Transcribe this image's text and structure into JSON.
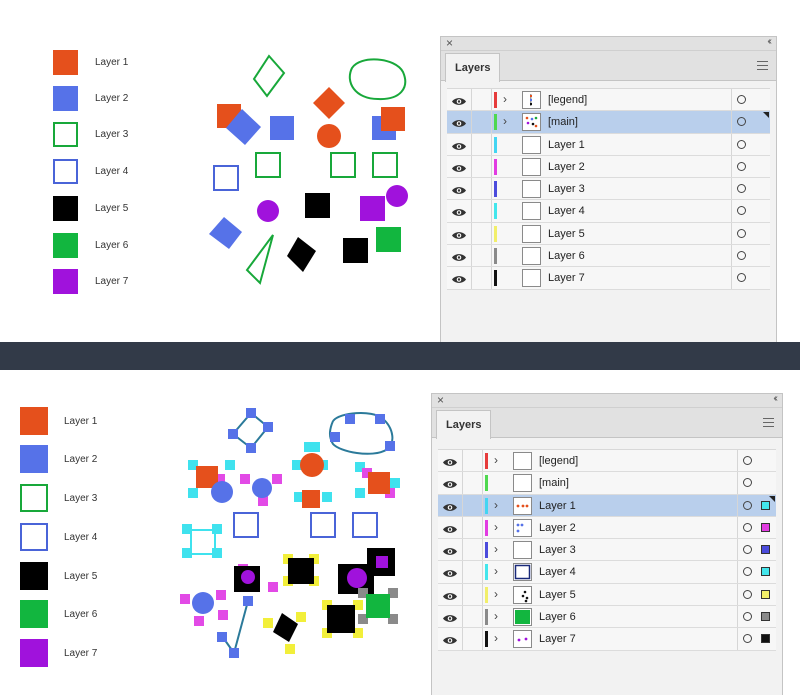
{
  "top": {
    "legend": {
      "items": [
        {
          "label": "Layer 1",
          "color": "#e5501c",
          "style": "filled"
        },
        {
          "label": "Layer 2",
          "color": "#5672e8",
          "style": "filled"
        },
        {
          "label": "Layer 3",
          "color": "#18a83a",
          "style": "outline"
        },
        {
          "label": "Layer 4",
          "color": "#4a64d8",
          "style": "outline"
        },
        {
          "label": "Layer 5",
          "color": "#000000",
          "style": "filled"
        },
        {
          "label": "Layer 6",
          "color": "#12b63f",
          "style": "filled"
        },
        {
          "label": "Layer 7",
          "color": "#a012dc",
          "style": "filled"
        }
      ]
    },
    "panel": {
      "tab_label": "Layers",
      "rows": [
        {
          "name": "[legend]",
          "color": "#e63b3b",
          "expandable": true,
          "selected": false,
          "thumb": "dots-legend"
        },
        {
          "name": "[main]",
          "color": "#4fd84f",
          "expandable": true,
          "selected": true,
          "thumb": "dots-main"
        },
        {
          "name": "Layer 1",
          "color": "#43d5f2",
          "expandable": false,
          "selected": false,
          "thumb": "blank"
        },
        {
          "name": "Layer 2",
          "color": "#e23ce2",
          "expandable": false,
          "selected": false,
          "thumb": "blank"
        },
        {
          "name": "Layer 3",
          "color": "#4b4bdc",
          "expandable": false,
          "selected": false,
          "thumb": "blank"
        },
        {
          "name": "Layer 4",
          "color": "#43e6ec",
          "expandable": false,
          "selected": false,
          "thumb": "blank"
        },
        {
          "name": "Layer 5",
          "color": "#f2ef6a",
          "expandable": false,
          "selected": false,
          "thumb": "blank"
        },
        {
          "name": "Layer 6",
          "color": "#8a8a8a",
          "expandable": false,
          "selected": false,
          "thumb": "blank"
        },
        {
          "name": "Layer 7",
          "color": "#111111",
          "expandable": false,
          "selected": false,
          "thumb": "blank"
        }
      ]
    }
  },
  "bottom": {
    "legend": {
      "items": [
        {
          "label": "Layer 1",
          "color": "#e5501c",
          "style": "filled"
        },
        {
          "label": "Layer 2",
          "color": "#5672e8",
          "style": "filled"
        },
        {
          "label": "Layer 3",
          "color": "#18a83a",
          "style": "outline"
        },
        {
          "label": "Layer 4",
          "color": "#4a64d8",
          "style": "outline"
        },
        {
          "label": "Layer 5",
          "color": "#000000",
          "style": "filled"
        },
        {
          "label": "Layer 6",
          "color": "#12b63f",
          "style": "filled"
        },
        {
          "label": "Layer 7",
          "color": "#a012dc",
          "style": "filled"
        }
      ]
    },
    "panel": {
      "tab_label": "Layers",
      "rows": [
        {
          "name": "[legend]",
          "color": "#e63b3b",
          "expandable": true,
          "selected": false,
          "thumb": "blank",
          "sel_color": ""
        },
        {
          "name": "[main]",
          "color": "#4fd84f",
          "expandable": false,
          "selected": false,
          "thumb": "blank",
          "sel_color": ""
        },
        {
          "name": "Layer 1",
          "color": "#43d5f2",
          "expandable": true,
          "selected": true,
          "thumb": "dots-l1",
          "sel_color": "#43e6ec"
        },
        {
          "name": "Layer 2",
          "color": "#e23ce2",
          "expandable": true,
          "selected": false,
          "thumb": "dots-l2",
          "sel_color": "#e23ce2"
        },
        {
          "name": "Layer 3",
          "color": "#4b4bdc",
          "expandable": true,
          "selected": false,
          "thumb": "blank",
          "sel_color": "#4b4bdc"
        },
        {
          "name": "Layer 4",
          "color": "#43e6ec",
          "expandable": true,
          "selected": false,
          "thumb": "outline-blue",
          "sel_color": "#43e6ec"
        },
        {
          "name": "Layer 5",
          "color": "#f2ef6a",
          "expandable": true,
          "selected": false,
          "thumb": "dots-l5",
          "sel_color": "#f2ef6a"
        },
        {
          "name": "Layer 6",
          "color": "#8a8a8a",
          "expandable": true,
          "selected": false,
          "thumb": "green-fill",
          "sel_color": "#8a8a8a"
        },
        {
          "name": "Layer 7",
          "color": "#111111",
          "expandable": true,
          "selected": false,
          "thumb": "dots-l7",
          "sel_color": "#111111"
        }
      ]
    }
  }
}
